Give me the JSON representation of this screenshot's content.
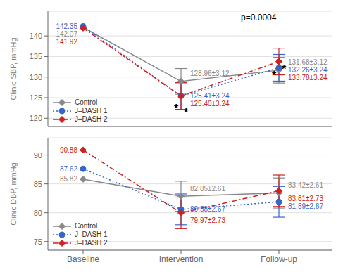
{
  "chart_data": [
    {
      "type": "line",
      "categories": [
        "Baseline",
        "Intervention",
        "Follow-up"
      ],
      "ylabel": "Clinic SBP, mmHg",
      "ylim": [
        118,
        146
      ],
      "yticks": [
        120,
        125,
        130,
        135,
        140
      ],
      "grid": true,
      "legend": "lower left",
      "tick_labels": "y",
      "data_labels": true,
      "series": [
        {
          "name": "Control",
          "color": "#888888",
          "marker": "diamond",
          "line_style": "solid",
          "values": [
            142.07,
            128.96,
            131.68
          ],
          "error": [
            0,
            3.12,
            3.12
          ],
          "value_labels": [
            "142.07",
            "128.96±3.12",
            "131.68±3.12"
          ]
        },
        {
          "name": "J–DASH 1",
          "color": "#3366cc",
          "marker": "circle",
          "line_style": "dotted",
          "values": [
            142.35,
            125.41,
            132.26
          ],
          "error": [
            0,
            3.24,
            3.24
          ],
          "value_labels": [
            "142.35",
            "125.41±3.24",
            "132.26±3.24"
          ]
        },
        {
          "name": "J–DASH 2",
          "color": "#cc2222",
          "marker": "diamond",
          "line_style": "dashdot",
          "values": [
            141.92,
            125.4,
            133.78
          ],
          "error": [
            0,
            3.24,
            3.24
          ],
          "value_labels": [
            "141.92",
            "125.40±3.24",
            "133.78±3.24"
          ]
        }
      ],
      "annotations": [
        {
          "text": "p=0.0004"
        },
        {
          "text": "*",
          "x": "Intervention",
          "y": 122.5,
          "series": "Control"
        },
        {
          "text": "*",
          "x": "Intervention",
          "y": 121.5,
          "series": "J–DASH 2"
        },
        {
          "text": "*",
          "x": "Follow-up",
          "y": 130.5,
          "series": "Control"
        },
        {
          "text": "*",
          "x": "Follow-up",
          "y": 132.0,
          "series": "J–DASH 2"
        }
      ]
    },
    {
      "type": "line",
      "categories": [
        "Baseline",
        "Intervention",
        "Follow-up"
      ],
      "ylabel": "Clinic DBP, mmHg",
      "ylim": [
        73.5,
        93
      ],
      "yticks": [
        75,
        80,
        85,
        90
      ],
      "grid": true,
      "legend": "lower left",
      "data_labels": true,
      "series": [
        {
          "name": "Control",
          "color": "#888888",
          "marker": "diamond",
          "line_style": "solid",
          "values": [
            85.82,
            82.85,
            83.42
          ],
          "error": [
            0,
            2.61,
            2.61
          ],
          "value_labels": [
            "85.82",
            "82.85±2.61",
            "83.42±2.61"
          ]
        },
        {
          "name": "J–DASH 1",
          "color": "#3366cc",
          "marker": "circle",
          "line_style": "dotted",
          "values": [
            87.62,
            80.58,
            81.89
          ],
          "error": [
            0,
            2.67,
            2.67
          ],
          "value_labels": [
            "87.62",
            "80.58±2.67",
            "81.89±2.67"
          ]
        },
        {
          "name": "J–DASH 2",
          "color": "#cc2222",
          "marker": "diamond",
          "line_style": "dashdot",
          "values": [
            90.88,
            79.97,
            83.81
          ],
          "error": [
            0,
            2.73,
            2.73
          ],
          "value_labels": [
            "90.88",
            "79.97±2.73",
            "83.81±2.73"
          ]
        }
      ]
    }
  ]
}
